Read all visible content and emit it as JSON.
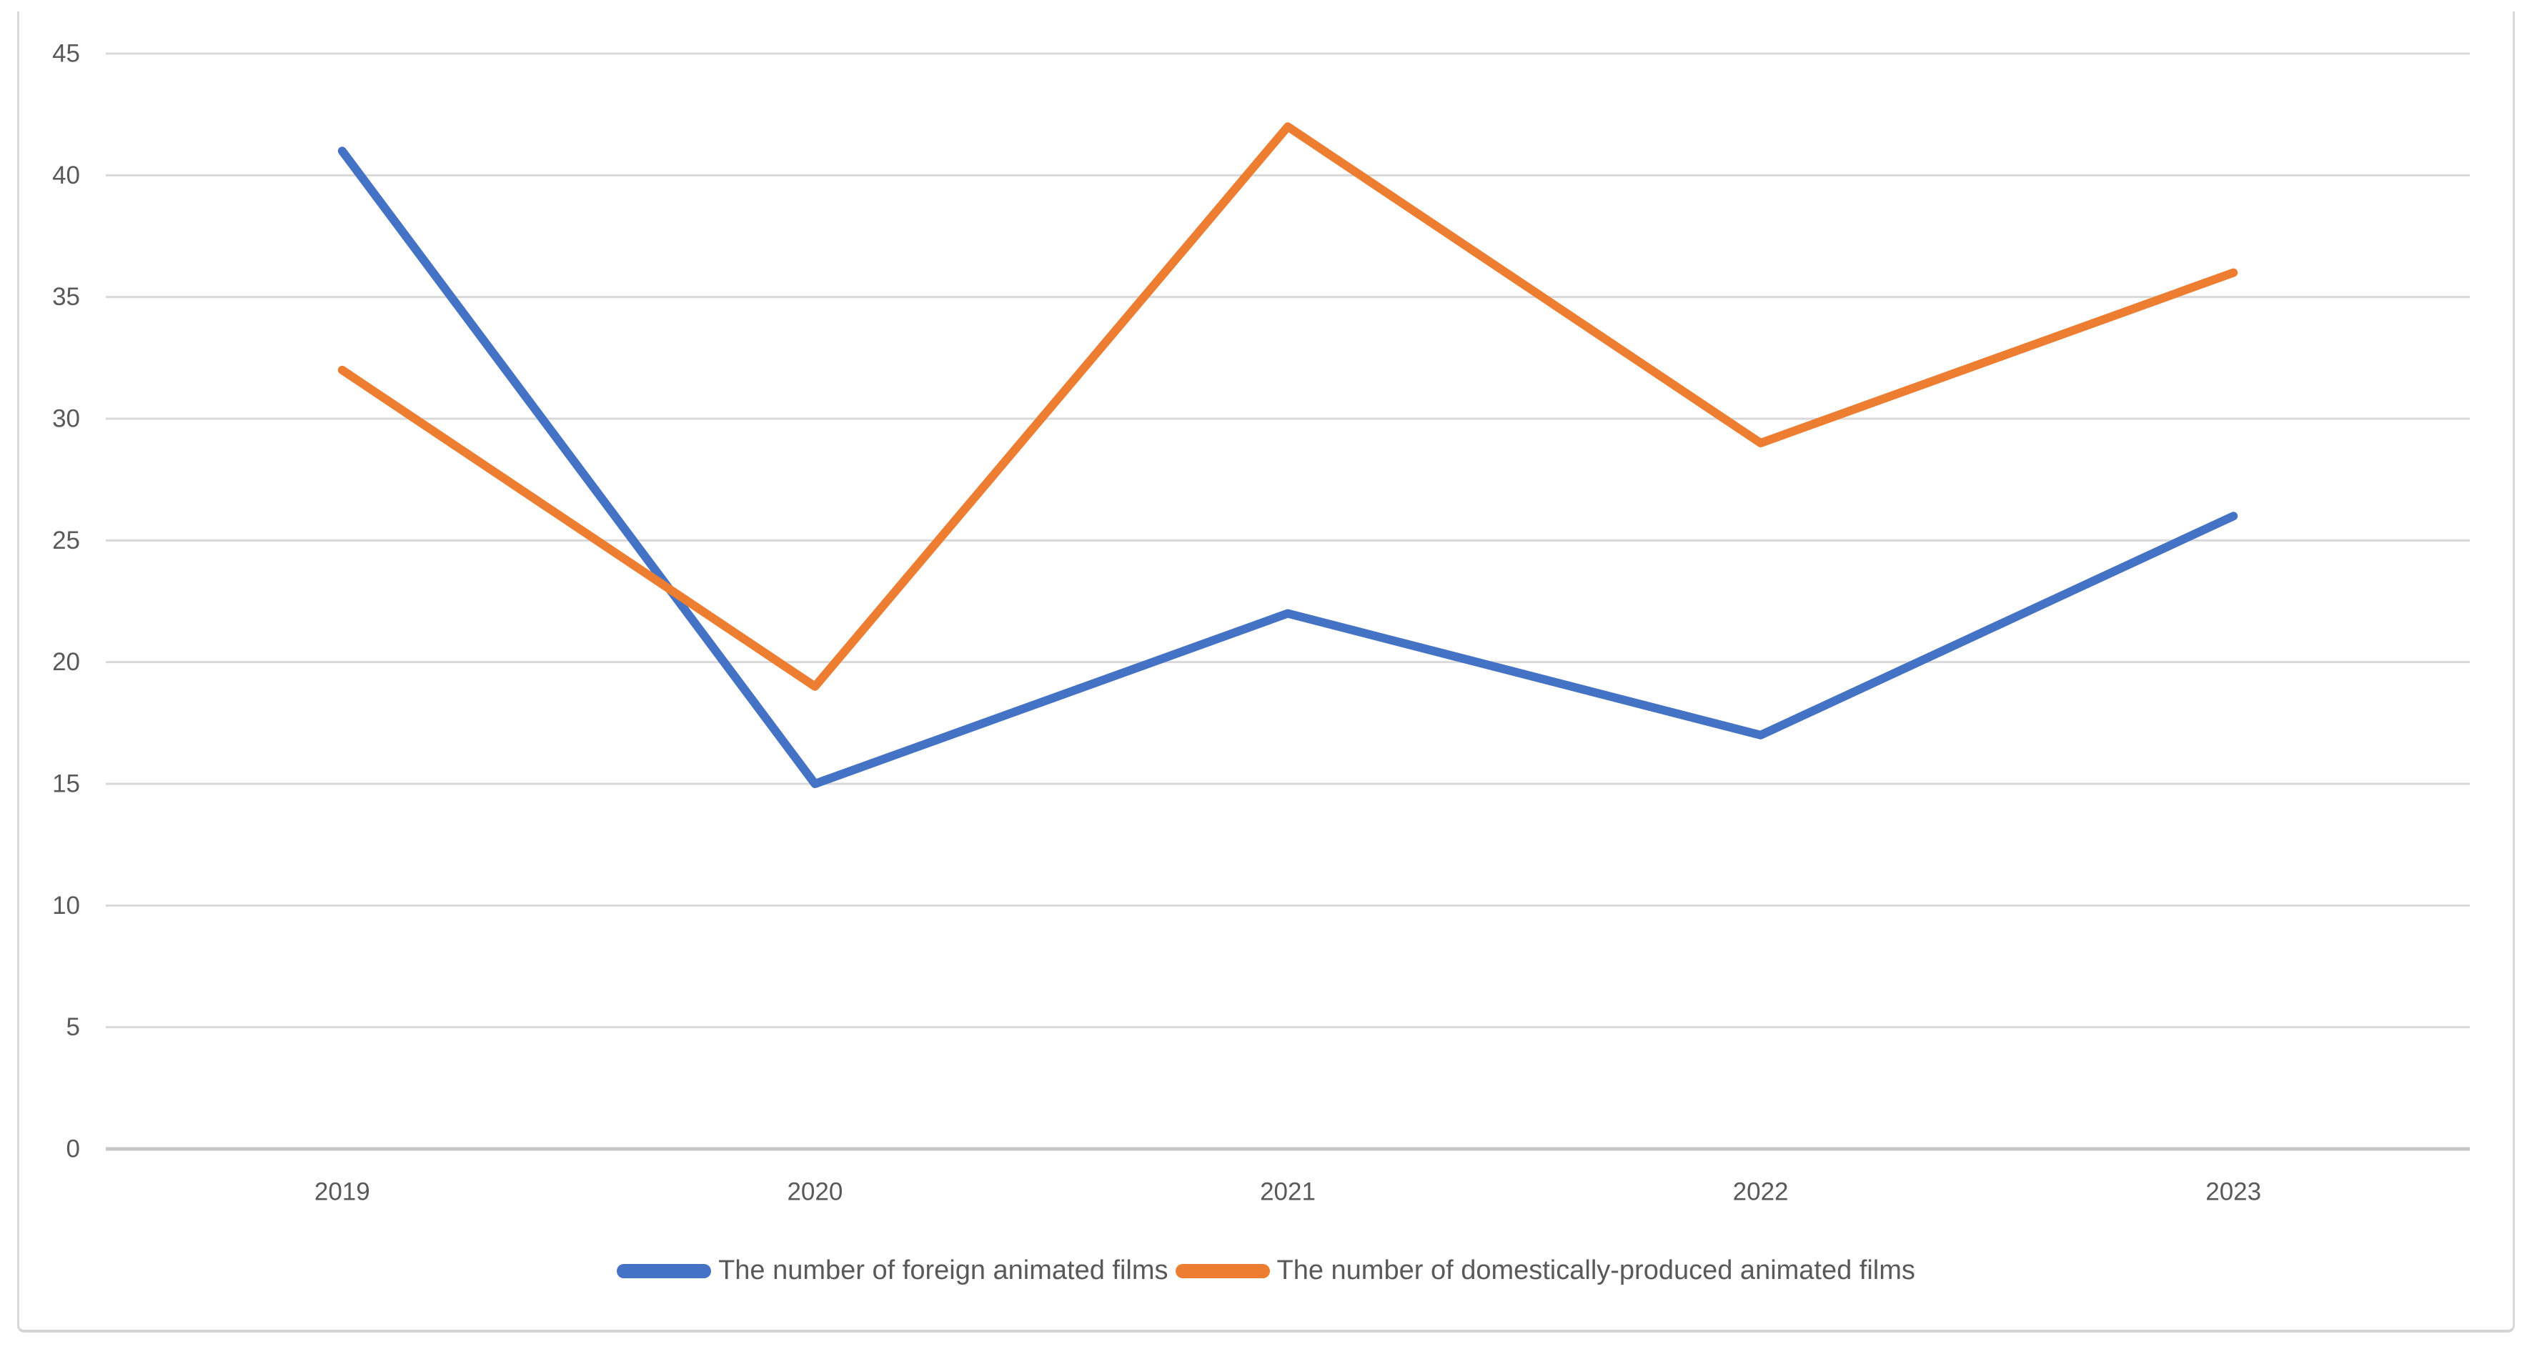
{
  "chart_data": {
    "type": "line",
    "title": "",
    "xlabel": "",
    "ylabel": "",
    "categories": [
      "2019",
      "2020",
      "2021",
      "2022",
      "2023"
    ],
    "series": [
      {
        "name": "The number of foreign animated films",
        "color": "#4472C4",
        "values": [
          41,
          15,
          22,
          17,
          26
        ]
      },
      {
        "name": "The number of domestically-produced animated films",
        "color": "#ED7D31",
        "values": [
          32,
          19,
          42,
          29,
          36
        ]
      }
    ],
    "ylim": [
      0,
      45
    ],
    "y_ticks": [
      0,
      5,
      10,
      15,
      20,
      25,
      30,
      35,
      40,
      45
    ],
    "grid": true,
    "legend_position": "bottom"
  },
  "palette": {
    "gridline": "#D9D9D9",
    "axis_line": "#C6C6C6",
    "tick_text": "#595959",
    "frame_border": "#D9D9D9",
    "background": "#FFFFFF"
  }
}
